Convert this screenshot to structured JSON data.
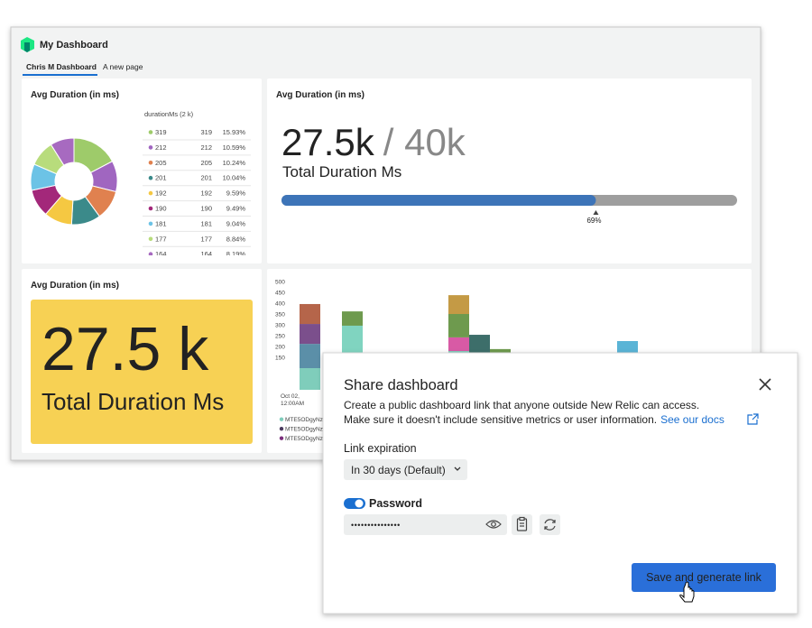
{
  "header": {
    "title": "My Dashboard",
    "tabs": [
      "Chris M Dashboard",
      "A new page"
    ]
  },
  "widgets": [
    {
      "type": "pie",
      "title": "Avg Duration (in ms)",
      "table_header": "durationMs (2 k)",
      "rows": [
        {
          "label": "319",
          "value": 319,
          "percent": "15.93%",
          "color": "#9ecb6a"
        },
        {
          "label": "212",
          "value": 212,
          "percent": "10.59%",
          "color": "#a066c0"
        },
        {
          "label": "205",
          "value": 205,
          "percent": "10.24%",
          "color": "#e0814f"
        },
        {
          "label": "201",
          "value": 201,
          "percent": "10.04%",
          "color": "#3b8a8a"
        },
        {
          "label": "192",
          "value": 192,
          "percent": "9.59%",
          "color": "#f5c842"
        },
        {
          "label": "190",
          "value": 190,
          "percent": "9.49%",
          "color": "#a3287a"
        },
        {
          "label": "181",
          "value": 181,
          "percent": "9.04%",
          "color": "#6cc3e6"
        },
        {
          "label": "177",
          "value": 177,
          "percent": "8.84%",
          "color": "#b8dc7c"
        },
        {
          "label": "164",
          "value": 164,
          "percent": "8.19%",
          "color": "#a76ac0"
        }
      ]
    },
    {
      "type": "billboard",
      "title": "Avg Duration (in ms)",
      "value": "27.5k",
      "limit": "/ 40k",
      "caption": "Total Duration Ms",
      "progress": {
        "value": 69,
        "label": "69%"
      }
    },
    {
      "type": "billboard",
      "title": "Avg Duration (in ms)",
      "value": "27.5 k",
      "caption": "Total Duration Ms",
      "color": "#f7d154"
    },
    {
      "type": "bar",
      "ylim": [
        0,
        500
      ],
      "yticks": [
        150,
        200,
        250,
        300,
        350,
        400,
        450,
        500
      ],
      "x_label": [
        "Oct 02,",
        "12:00AM"
      ],
      "stacks": [
        {
          "segments": [
            {
              "value": 100,
              "color": "#7fcdbb"
            },
            {
              "value": 112,
              "color": "#5b8fa8"
            },
            {
              "value": 92,
              "color": "#7b4f8c"
            },
            {
              "value": 92,
              "color": "#b5654a"
            }
          ]
        },
        {
          "segments": [
            {
              "value": 296,
              "color": "#80d4c0"
            },
            {
              "value": 66,
              "color": "#6e9a4e"
            }
          ]
        },
        {
          "segments": [
            {
              "value": 179,
              "color": "#7fcdbb"
            },
            {
              "value": 63,
              "color": "#d85aa5"
            },
            {
              "value": 108,
              "color": "#6e9a4e"
            },
            {
              "value": 87,
              "color": "#c49a45"
            }
          ]
        },
        {
          "segments": [
            {
              "value": 254,
              "color": "#3d6e6a"
            }
          ]
        },
        {
          "segments": [
            {
              "value": 188,
              "color": "#6e9a4e"
            }
          ]
        },
        {
          "segments": [
            {
              "value": 225,
              "color": "#5ab4d6"
            }
          ]
        }
      ],
      "legend": [
        {
          "name": "MTE5ODgyNz",
          "color": "#7fcdbb"
        },
        {
          "name": "MTE5ODgyNz",
          "color": "#4a3a5e"
        },
        {
          "name": "MTE5ODgyNz",
          "color": "#7b2f7c"
        }
      ]
    }
  ],
  "modal": {
    "title": "Share dashboard",
    "description": [
      "Create a public dashboard link that anyone outside New Relic can access.",
      "Make sure it doesn't include sensitive metrics or user information."
    ],
    "link": "See our docs",
    "expiration_label": "Link expiration",
    "expiration_value": "In 30 days (Default)",
    "password_label": "Password",
    "password_value": "•••••••••••••••",
    "button": "Save and generate link"
  }
}
